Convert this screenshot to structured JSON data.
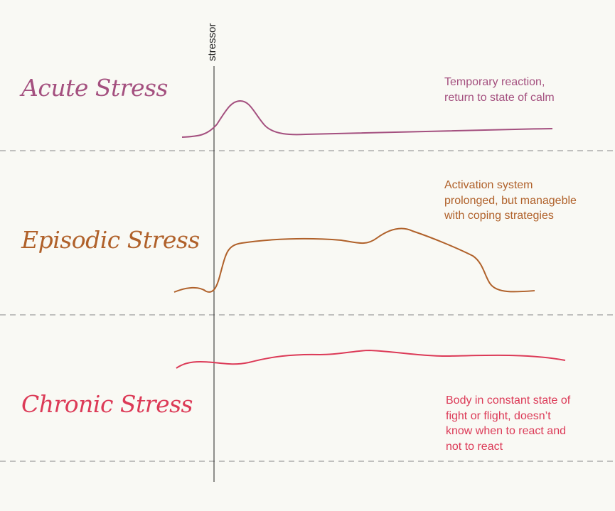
{
  "stressor_label": "stressor",
  "sections": [
    {
      "title": "Acute Stress",
      "description": [
        "Temporary reaction,",
        "return to state of calm"
      ],
      "color": "#a4507f"
    },
    {
      "title": "Episodic Stress",
      "description": [
        "Activation system",
        "prolonged, but manageble",
        "with coping strategies"
      ],
      "color": "#b0612a"
    },
    {
      "title": "Chronic Stress",
      "description": [
        "Body in constant state of",
        "fight or flight, doesn’t",
        "know when to react and",
        "not to react"
      ],
      "color": "#dc3a57"
    }
  ]
}
